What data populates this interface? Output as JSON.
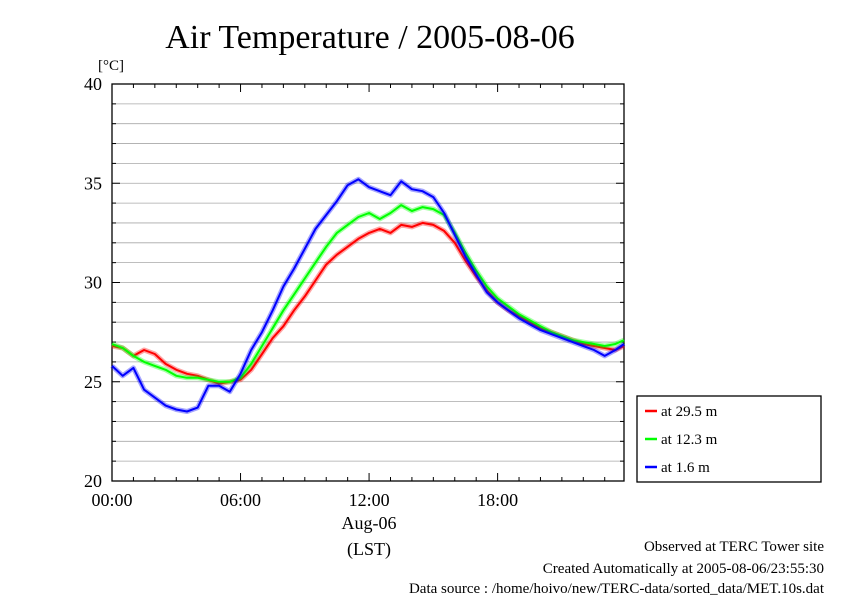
{
  "title": "Air Temperature / 2005-08-06",
  "footer": {
    "line1": "Observed at TERC Tower site",
    "line2": "Created Automatically at 2005-08-06/23:55:30",
    "line3": "Data source : /home/hoivo/new/TERC-data/sorted_data/MET.10s.dat"
  },
  "chart_data": {
    "type": "line",
    "title": "Air Temperature / 2005-08-06",
    "ylabel": "[°C]",
    "xlabel_date": "Aug-06",
    "xlabel_tz": "(LST)",
    "x_unit": "hour of day (LST)",
    "xlim": [
      0,
      23.9
    ],
    "ylim": [
      20,
      40
    ],
    "x_ticks": [
      0,
      6,
      12,
      18
    ],
    "x_tick_labels": [
      "00:00",
      "06:00",
      "12:00",
      "18:00"
    ],
    "y_ticks": [
      20,
      25,
      30,
      35,
      40
    ],
    "y_tick_labels": [
      "20",
      "25",
      "30",
      "35",
      "40"
    ],
    "grid": "horizontal every 1°C",
    "legend_position": "right-bottom outside plot",
    "x": [
      0,
      0.5,
      1,
      1.5,
      2,
      2.5,
      3,
      3.5,
      4,
      4.5,
      5,
      5.5,
      6,
      6.5,
      7,
      7.5,
      8,
      8.5,
      9,
      9.5,
      10,
      10.5,
      11,
      11.5,
      12,
      12.5,
      13,
      13.5,
      14,
      14.5,
      15,
      15.5,
      16,
      16.5,
      17,
      17.5,
      18,
      18.5,
      19,
      19.5,
      20,
      20.5,
      21,
      21.5,
      22,
      22.5,
      23,
      23.5,
      23.9
    ],
    "series": [
      {
        "name": "at 29.5 m",
        "color": "#ff0000",
        "values": [
          26.8,
          26.7,
          26.3,
          26.6,
          26.4,
          25.9,
          25.6,
          25.4,
          25.3,
          25.1,
          24.9,
          25.0,
          25.1,
          25.6,
          26.4,
          27.2,
          27.8,
          28.6,
          29.3,
          30.1,
          30.9,
          31.4,
          31.8,
          32.2,
          32.5,
          32.7,
          32.5,
          32.9,
          32.8,
          33.0,
          32.9,
          32.6,
          32.0,
          31.1,
          30.3,
          29.6,
          29.0,
          28.6,
          28.3,
          28.0,
          27.7,
          27.5,
          27.3,
          27.1,
          26.9,
          26.8,
          26.7,
          26.6,
          26.8
        ]
      },
      {
        "name": "at 12.3 m",
        "color": "#00ff00",
        "values": [
          26.9,
          26.7,
          26.3,
          26.0,
          25.8,
          25.6,
          25.3,
          25.2,
          25.2,
          25.1,
          25.0,
          25.0,
          25.2,
          25.9,
          26.8,
          27.7,
          28.6,
          29.4,
          30.2,
          31.0,
          31.8,
          32.5,
          32.9,
          33.3,
          33.5,
          33.2,
          33.5,
          33.9,
          33.6,
          33.8,
          33.7,
          33.4,
          32.5,
          31.5,
          30.6,
          29.8,
          29.2,
          28.8,
          28.4,
          28.1,
          27.8,
          27.5,
          27.3,
          27.1,
          27.0,
          26.9,
          26.8,
          26.9,
          27.1
        ]
      },
      {
        "name": "at 1.6 m",
        "color": "#0000ff",
        "values": [
          25.8,
          25.3,
          25.7,
          24.6,
          24.2,
          23.8,
          23.6,
          23.5,
          23.7,
          24.8,
          24.8,
          24.5,
          25.4,
          26.6,
          27.5,
          28.6,
          29.8,
          30.7,
          31.7,
          32.7,
          33.4,
          34.1,
          34.9,
          35.2,
          34.8,
          34.6,
          34.4,
          35.1,
          34.7,
          34.6,
          34.3,
          33.5,
          32.4,
          31.3,
          30.4,
          29.5,
          29.0,
          28.6,
          28.2,
          27.9,
          27.6,
          27.4,
          27.2,
          27.0,
          26.8,
          26.6,
          26.3,
          26.6,
          26.9
        ]
      }
    ]
  }
}
